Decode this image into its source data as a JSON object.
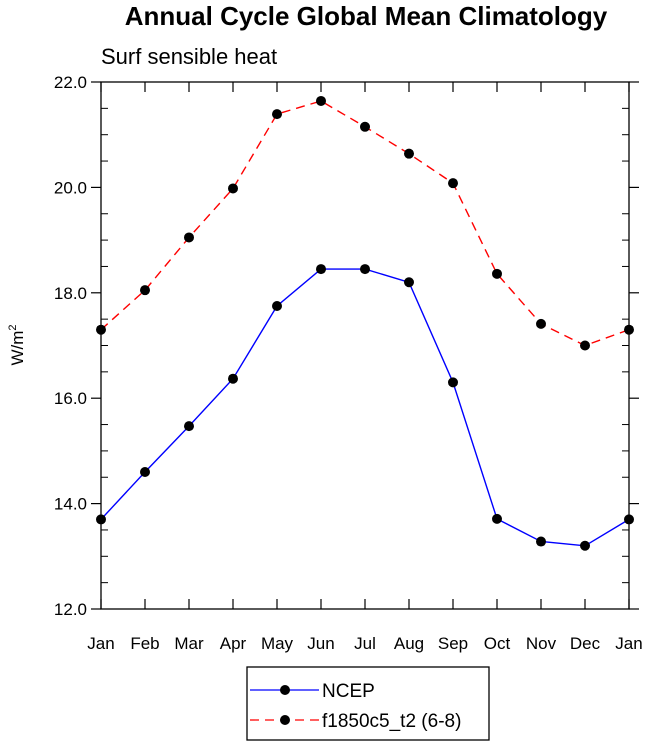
{
  "chart_data": {
    "type": "line",
    "title": "Annual Cycle Global Mean Climatology",
    "subtitle": "Surf sensible heat",
    "ylabel": "W/m",
    "ylabel_superscript": "2",
    "categories": [
      "Jan",
      "Feb",
      "Mar",
      "Apr",
      "May",
      "Jun",
      "Jul",
      "Aug",
      "Sep",
      "Oct",
      "Nov",
      "Dec",
      "Jan"
    ],
    "ylim": [
      12.0,
      22.0
    ],
    "yticks": [
      "12.0",
      "14.0",
      "16.0",
      "18.0",
      "20.0",
      "22.0"
    ],
    "ytick_values": [
      12,
      14,
      16,
      18,
      20,
      22
    ],
    "series": [
      {
        "name": "NCEP",
        "color": "#0000ff",
        "dash": "solid",
        "values": [
          13.7,
          14.6,
          15.47,
          16.37,
          17.75,
          18.45,
          18.45,
          18.2,
          16.3,
          13.71,
          13.28,
          13.2,
          13.7
        ]
      },
      {
        "name": "f1850c5_t2 (6-8)",
        "color": "#ff0000",
        "dash": "dashed",
        "values": [
          17.3,
          18.05,
          19.05,
          19.98,
          21.39,
          21.64,
          21.15,
          20.64,
          20.08,
          18.36,
          17.41,
          17.0,
          17.3
        ]
      }
    ],
    "legend_position": "bottom-center"
  }
}
